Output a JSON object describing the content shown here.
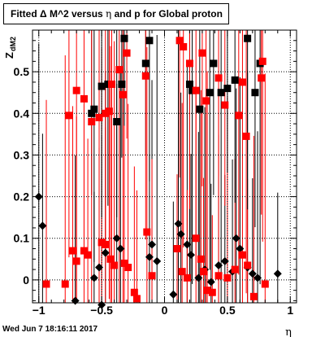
{
  "title_prefix": "Fitted",
  "title_mid": "M^2 versus",
  "title_rest": "and p for Global proton",
  "footer": "Wed Jun  7 18:16:11 2017",
  "colors": {
    "series_black": "#000000",
    "series_red": "#ff0000",
    "grid": "#000000"
  },
  "chart_data": {
    "type": "scatter",
    "xlabel": "η",
    "ylabel": "Z",
    "ylabel_sub": "dM2",
    "xlim": [
      -1.05,
      1.05
    ],
    "ylim": [
      -0.055,
      0.6
    ],
    "x_ticks": [
      -1,
      -0.5,
      0,
      0.5,
      1
    ],
    "x_tick_labels": [
      "−1",
      "−0.5",
      "0",
      "0.5",
      "1"
    ],
    "y_ticks": [
      0,
      0.1,
      0.2,
      0.3,
      0.4,
      0.5
    ],
    "y_tick_labels": [
      "0",
      "0.1",
      "0.2",
      "0.3",
      "0.4",
      "0.5"
    ],
    "grid": true,
    "series": [
      {
        "color": "black",
        "marker": "diamond",
        "points": [
          [
            -1.0,
            0.2
          ],
          [
            -0.97,
            0.13
          ],
          [
            -0.71,
            -0.05
          ],
          [
            -0.56,
            0.005
          ],
          [
            -0.5,
            -0.06
          ],
          [
            -0.52,
            0.03
          ],
          [
            -0.47,
            0.065
          ],
          [
            -0.38,
            0.1
          ],
          [
            -0.35,
            0.075
          ],
          [
            -0.1,
            0.085
          ],
          [
            -0.12,
            0.055
          ],
          [
            -0.06,
            0.045
          ],
          [
            0.07,
            -0.035
          ],
          [
            0.11,
            0.135
          ],
          [
            0.13,
            0.11
          ],
          [
            0.18,
            0.085
          ],
          [
            0.21,
            0.06
          ],
          [
            0.27,
            0.005
          ],
          [
            0.32,
            0.025
          ],
          [
            0.37,
            -0.005
          ],
          [
            0.43,
            0.035
          ],
          [
            0.48,
            0.045
          ],
          [
            0.54,
            0.02
          ],
          [
            0.57,
            0.1
          ],
          [
            0.6,
            0.075
          ],
          [
            0.66,
            0.03
          ],
          [
            0.7,
            0.015
          ],
          [
            0.74,
            0.005
          ],
          [
            0.9,
            0.015
          ]
        ]
      },
      {
        "color": "red",
        "marker": "square",
        "points": [
          [
            -0.94,
            -0.01
          ],
          [
            -0.79,
            -0.01
          ],
          [
            -0.73,
            0.07
          ],
          [
            -0.7,
            0.045
          ],
          [
            -0.64,
            0.07
          ],
          [
            -0.61,
            0.06
          ],
          [
            -0.5,
            0.09
          ],
          [
            -0.47,
            0.085
          ],
          [
            -0.43,
            0.05
          ],
          [
            -0.4,
            0.035
          ],
          [
            -0.32,
            0.04
          ],
          [
            -0.29,
            0.03
          ],
          [
            -0.24,
            -0.03
          ],
          [
            -0.22,
            -0.045
          ],
          [
            -0.14,
            0.115
          ],
          [
            -0.1,
            0.01
          ],
          [
            0.1,
            0.075
          ],
          [
            0.14,
            0.02
          ],
          [
            0.18,
            0.005
          ],
          [
            0.25,
            0.1
          ],
          [
            0.29,
            0.05
          ],
          [
            0.31,
            0.02
          ],
          [
            0.34,
            -0.025
          ],
          [
            0.38,
            -0.03
          ],
          [
            0.43,
            0.01
          ],
          [
            0.5,
            0.005
          ],
          [
            0.56,
            0.025
          ],
          [
            0.62,
            0.06
          ],
          [
            0.66,
            0.035
          ],
          [
            0.71,
            -0.04
          ],
          [
            0.8,
            -0.01
          ]
        ]
      },
      {
        "color": "black",
        "marker": "square",
        "points": [
          [
            -0.58,
            0.4
          ],
          [
            -0.56,
            0.41
          ],
          [
            -0.5,
            0.465
          ],
          [
            -0.45,
            0.47
          ],
          [
            -0.38,
            0.38
          ],
          [
            -0.34,
            0.47
          ],
          [
            -0.32,
            0.58
          ],
          [
            -0.15,
            0.52
          ],
          [
            -0.12,
            0.575
          ],
          [
            0.2,
            0.47
          ],
          [
            0.22,
            0.455
          ],
          [
            0.28,
            0.41
          ],
          [
            0.36,
            0.45
          ],
          [
            0.39,
            0.52
          ],
          [
            0.45,
            0.45
          ],
          [
            0.5,
            0.46
          ],
          [
            0.56,
            0.48
          ],
          [
            0.66,
            0.58
          ],
          [
            0.72,
            0.45
          ],
          [
            0.76,
            0.52
          ]
        ]
      },
      {
        "color": "red",
        "marker": "square",
        "points": [
          [
            -0.76,
            0.395
          ],
          [
            -0.7,
            0.455
          ],
          [
            -0.64,
            0.435
          ],
          [
            -0.58,
            0.38
          ],
          [
            -0.52,
            0.39
          ],
          [
            -0.47,
            0.4
          ],
          [
            -0.44,
            0.405
          ],
          [
            -0.42,
            0.47
          ],
          [
            -0.36,
            0.505
          ],
          [
            -0.33,
            0.445
          ],
          [
            -0.3,
            0.545
          ],
          [
            -0.15,
            0.49
          ],
          [
            0.12,
            0.575
          ],
          [
            0.15,
            0.56
          ],
          [
            0.2,
            0.52
          ],
          [
            0.25,
            0.455
          ],
          [
            0.3,
            0.545
          ],
          [
            0.33,
            0.43
          ],
          [
            0.43,
            0.485
          ],
          [
            0.48,
            0.42
          ],
          [
            0.59,
            0.395
          ],
          [
            0.62,
            0.475
          ],
          [
            0.65,
            0.345
          ],
          [
            0.77,
            0.485
          ],
          [
            0.78,
            0.525
          ]
        ]
      }
    ]
  }
}
